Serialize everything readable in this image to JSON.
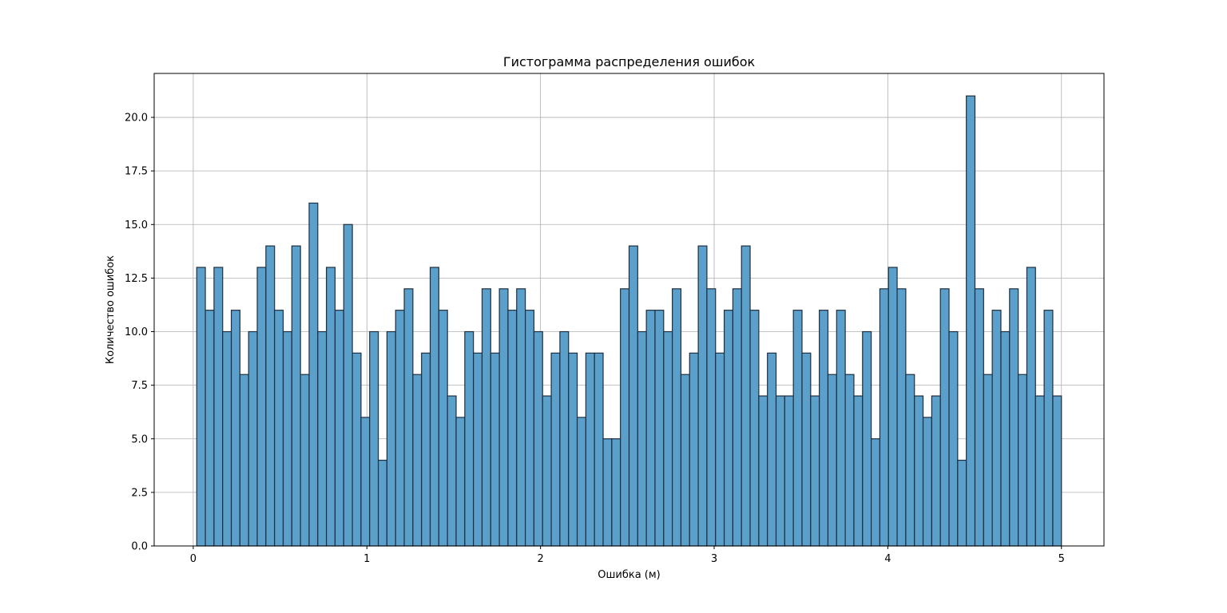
{
  "chart_data": {
    "type": "bar",
    "title": "Гистограмма распределения ошибок",
    "xlabel": "Ошибка (м)",
    "ylabel": "Количество ошибок",
    "xlim": [
      -0.225,
      5.245
    ],
    "ylim": [
      0,
      22.05
    ],
    "grid": true,
    "bar_color": "#5b9fcb",
    "edge_color": "#1f2f3f",
    "x_ticks": [
      {
        "value": 0,
        "label": "0"
      },
      {
        "value": 1,
        "label": "1"
      },
      {
        "value": 2,
        "label": "2"
      },
      {
        "value": 3,
        "label": "3"
      },
      {
        "value": 4,
        "label": "4"
      },
      {
        "value": 5,
        "label": "5"
      }
    ],
    "y_ticks": [
      {
        "value": 0,
        "label": "0.0"
      },
      {
        "value": 2.5,
        "label": "2.5"
      },
      {
        "value": 5,
        "label": "5.0"
      },
      {
        "value": 7.5,
        "label": "7.5"
      },
      {
        "value": 10,
        "label": "10.0"
      },
      {
        "value": 12.5,
        "label": "12.5"
      },
      {
        "value": 15,
        "label": "15.0"
      },
      {
        "value": 17.5,
        "label": "17.5"
      },
      {
        "value": 20,
        "label": "20.0"
      }
    ],
    "bins": {
      "start": 0.02,
      "end": 5.0,
      "count": 100
    },
    "values": [
      13,
      11,
      13,
      10,
      11,
      8,
      10,
      13,
      14,
      11,
      10,
      14,
      8,
      16,
      10,
      13,
      11,
      15,
      9,
      6,
      10,
      4,
      10,
      11,
      12,
      8,
      9,
      13,
      11,
      7,
      6,
      10,
      9,
      12,
      9,
      12,
      11,
      12,
      11,
      10,
      7,
      9,
      10,
      9,
      6,
      9,
      9,
      5,
      5,
      12,
      14,
      10,
      11,
      11,
      10,
      12,
      8,
      9,
      14,
      12,
      9,
      11,
      12,
      14,
      11,
      7,
      9,
      7,
      7,
      11,
      9,
      7,
      11,
      8,
      11,
      8,
      7,
      10,
      5,
      12,
      13,
      12,
      8,
      7,
      6,
      7,
      12,
      10,
      4,
      21,
      12,
      8,
      11,
      10,
      12,
      8,
      13,
      7,
      11,
      7
    ]
  }
}
